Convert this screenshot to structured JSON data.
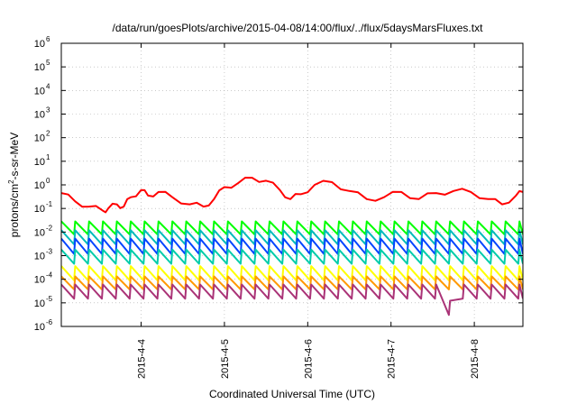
{
  "chart_data": {
    "type": "line",
    "title": "/data/run/goesPlots/archive/2015-04-08/14:00/flux/../flux/5daysMarsFluxes.txt",
    "xlabel": "Coordinated Universal Time (UTC)",
    "ylabel": {
      "base": "protons/cm",
      "sup": "2",
      "rest": "-s-sr-MeV"
    },
    "xscale": "time",
    "xlim": [
      "2015-04-03T01:00",
      "2015-04-08T14:00"
    ],
    "yscale": "log",
    "ylim": [
      1e-06,
      1000000.0
    ],
    "yticks": [
      {
        "value": 1e-06,
        "base": "10",
        "exp": "-6"
      },
      {
        "value": 1e-05,
        "base": "10",
        "exp": "-5"
      },
      {
        "value": 0.0001,
        "base": "10",
        "exp": "-4"
      },
      {
        "value": 0.001,
        "base": "10",
        "exp": "-3"
      },
      {
        "value": 0.01,
        "base": "10",
        "exp": "-2"
      },
      {
        "value": 0.1,
        "base": "10",
        "exp": "-1"
      },
      {
        "value": 1.0,
        "base": "10",
        "exp": "0"
      },
      {
        "value": 10.0,
        "base": "10",
        "exp": "1"
      },
      {
        "value": 100.0,
        "base": "10",
        "exp": "2"
      },
      {
        "value": 1000.0,
        "base": "10",
        "exp": "3"
      },
      {
        "value": 10000.0,
        "base": "10",
        "exp": "4"
      },
      {
        "value": 100000.0,
        "base": "10",
        "exp": "5"
      },
      {
        "value": 1000000.0,
        "base": "10",
        "exp": "6"
      }
    ],
    "xticks": [
      {
        "value": "2015-04-04T00:00",
        "label": "2015-4-4"
      },
      {
        "value": "2015-04-05T00:00",
        "label": "2015-4-5"
      },
      {
        "value": "2015-04-06T00:00",
        "label": "2015-4-6"
      },
      {
        "value": "2015-04-07T00:00",
        "label": "2015-4-7"
      },
      {
        "value": "2015-04-08T00:00",
        "label": "2015-4-8"
      }
    ],
    "grid": true,
    "legend": "none",
    "series": [
      {
        "color": "#ff0000",
        "x": [
          "2015-04-03T01:00",
          "2015-04-03T05:00",
          "2015-04-03T09:00",
          "2015-04-03T13:00",
          "2015-04-03T14:30",
          "2015-04-03T17:00",
          "2015-04-03T19:00",
          "2015-04-03T21:00",
          "2015-04-04T00:00",
          "2015-04-04T02:00",
          "2015-04-04T05:00",
          "2015-04-04T09:00",
          "2015-04-04T14:00",
          "2015-04-04T18:00",
          "2015-04-04T21:00",
          "2015-04-05T00:00",
          "2015-04-05T04:00",
          "2015-04-05T08:00",
          "2015-04-05T12:00",
          "2015-04-05T16:00",
          "2015-04-05T19:00",
          "2015-04-05T22:00",
          "2015-04-06T02:00",
          "2015-04-06T07:00",
          "2015-04-06T12:00",
          "2015-04-06T17:00",
          "2015-04-06T22:00",
          "2015-04-07T03:00",
          "2015-04-07T08:00",
          "2015-04-07T13:00",
          "2015-04-07T18:00",
          "2015-04-07T23:00",
          "2015-04-08T04:00",
          "2015-04-08T08:00",
          "2015-04-08T12:00",
          "2015-04-08T14:00"
        ],
        "y": [
          0.45,
          0.2,
          0.12,
          0.08,
          0.1,
          0.15,
          0.12,
          0.3,
          0.6,
          0.35,
          0.5,
          0.3,
          0.15,
          0.12,
          0.25,
          0.8,
          1.2,
          2.0,
          1.5,
          0.6,
          0.25,
          0.4,
          1.0,
          1.3,
          0.55,
          0.25,
          0.3,
          0.5,
          0.25,
          0.45,
          0.55,
          0.5,
          0.25,
          0.15,
          0.35,
          0.5
        ]
      },
      {
        "color": "#00ff00",
        "base": 0.015,
        "period_hours": 4,
        "amplitude_decades": 0.55,
        "x": [
          "2015-04-03T01:00",
          "2015-04-08T14:00"
        ]
      },
      {
        "color": "#00bbbb",
        "base": 0.006,
        "period_hours": 4,
        "amplitude_decades": 0.6,
        "x": [
          "2015-04-03T01:00",
          "2015-04-08T14:00"
        ]
      },
      {
        "color": "#0044ff",
        "base": 0.0025,
        "period_hours": 4,
        "amplitude_decades": 0.65,
        "x": [
          "2015-04-03T01:00",
          "2015-04-08T14:00"
        ]
      },
      {
        "color": "#00ccaa",
        "base": 0.0009,
        "period_hours": 4,
        "amplitude_decades": 0.6,
        "x": [
          "2015-04-03T01:00",
          "2015-04-08T14:00"
        ]
      },
      {
        "color": "#ffff00",
        "base": 0.00018,
        "period_hours": 4,
        "amplitude_decades": 0.6,
        "x": [
          "2015-04-03T01:00",
          "2015-04-08T14:00"
        ]
      },
      {
        "color": "#ff9900",
        "base": 7e-05,
        "period_hours": 4,
        "amplitude_decades": 0.55,
        "x": [
          "2015-04-03T01:00",
          "2015-04-08T14:00"
        ]
      },
      {
        "color": "#aa3377",
        "base": 3e-05,
        "period_hours": 4,
        "amplitude_decades": 0.6,
        "x": [
          "2015-04-03T01:00",
          "2015-04-08T14:00"
        ]
      }
    ]
  }
}
